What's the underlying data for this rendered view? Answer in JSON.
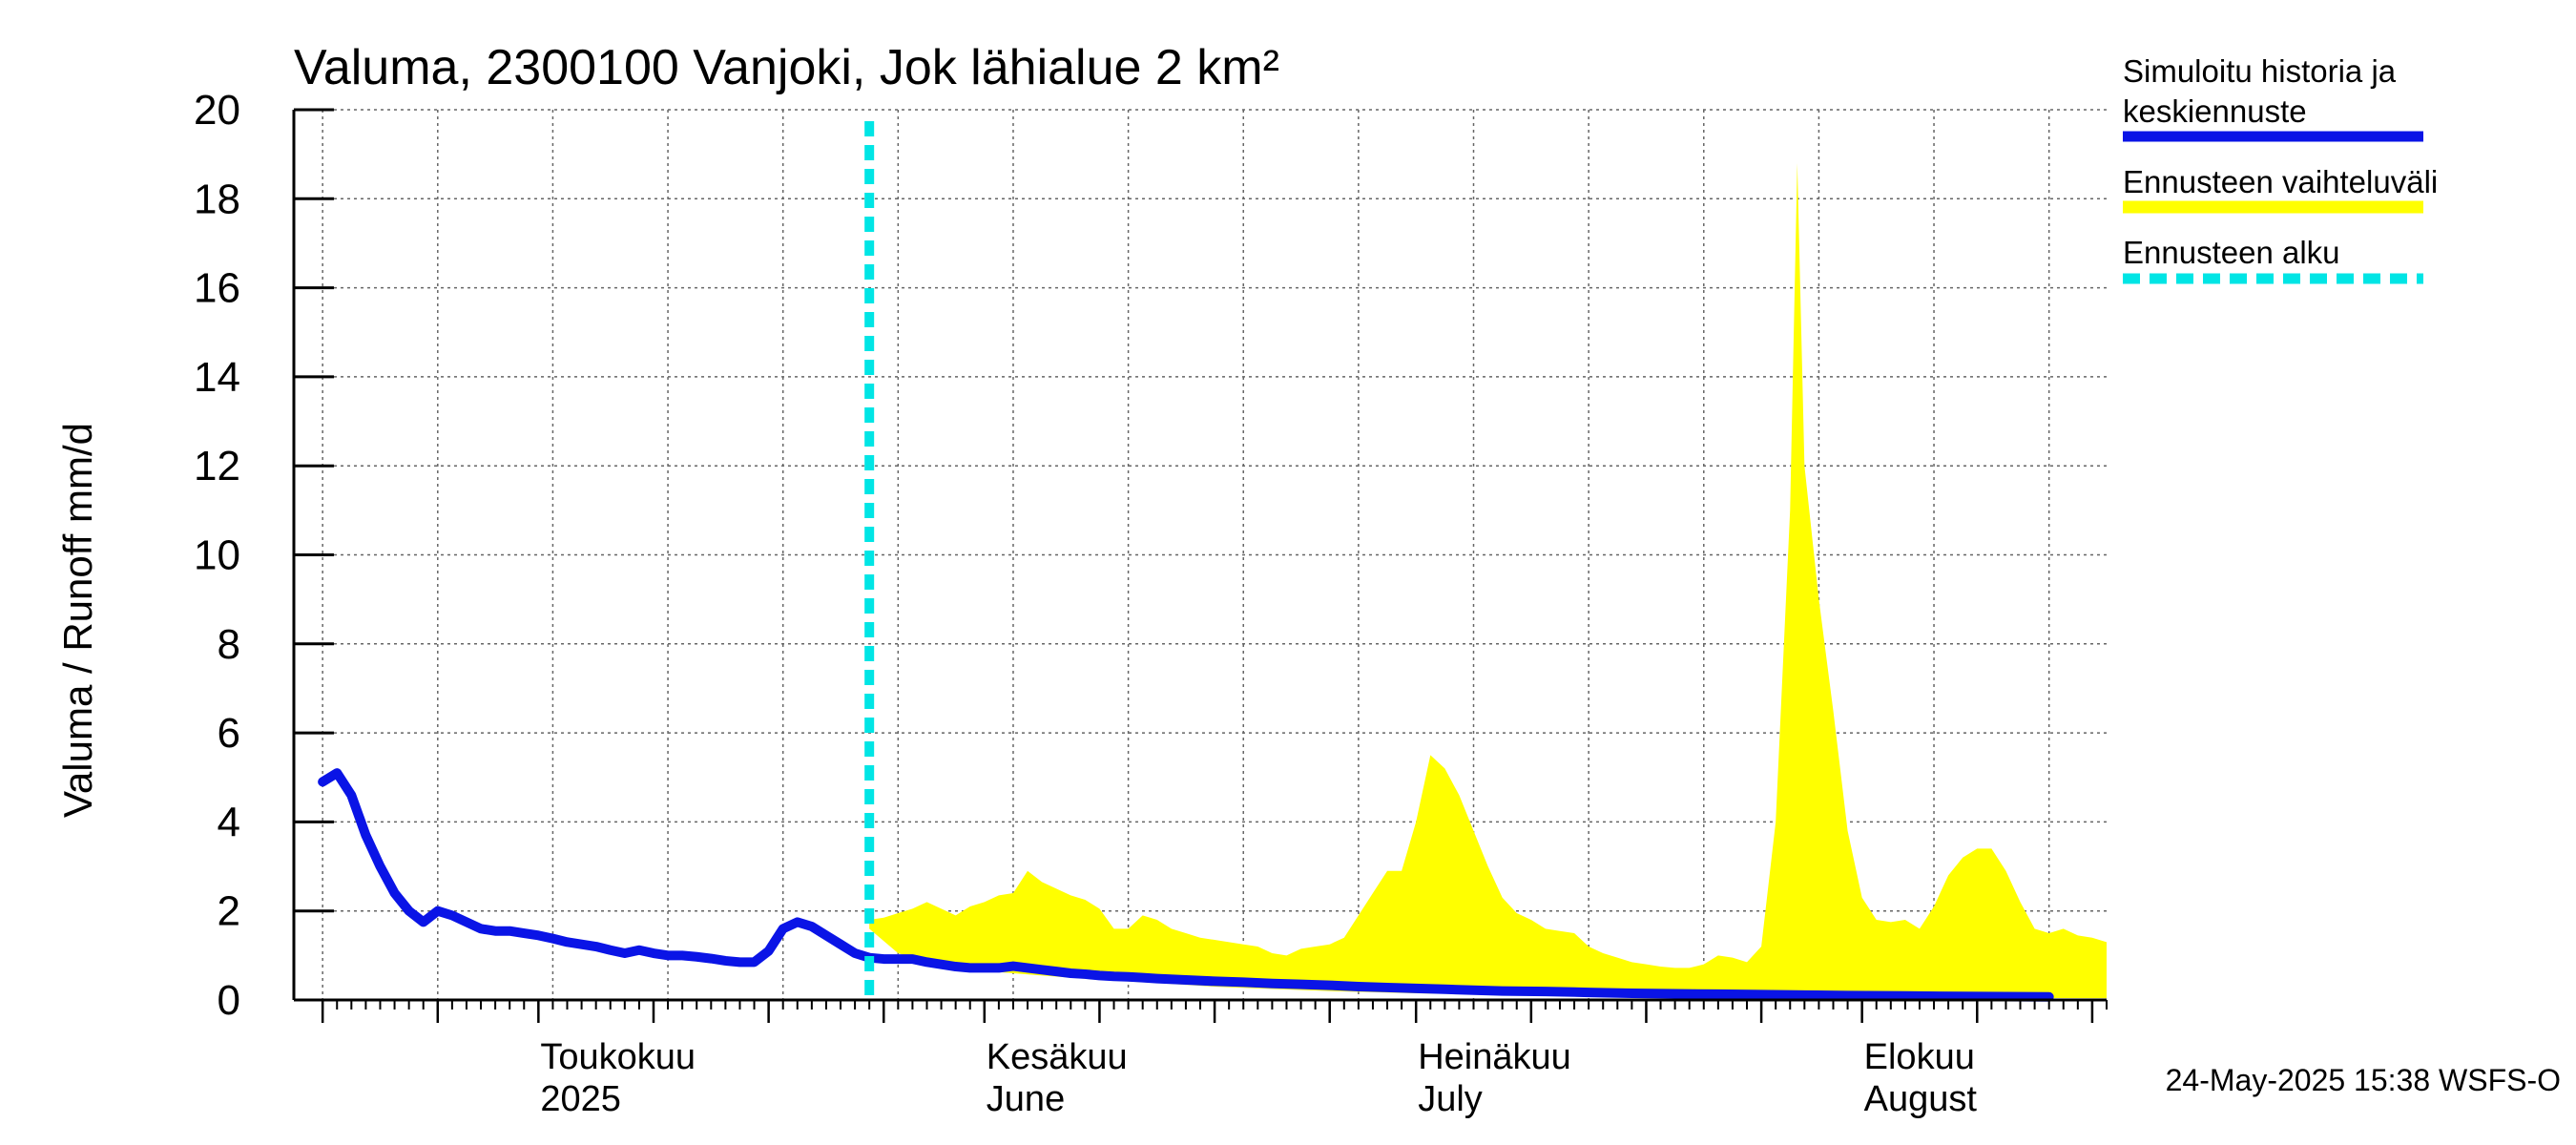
{
  "chart_data": {
    "type": "area",
    "title": "Valuma, 2300100 Vanjoki, Jok lähialue 2 km²",
    "ylabel": "Valuma / Runoff    mm/d",
    "ylim": [
      0,
      20
    ],
    "yticks": [
      0,
      2,
      4,
      6,
      8,
      10,
      12,
      14,
      16,
      18,
      20
    ],
    "x_range_days": [
      0,
      120
    ],
    "x_start_date": "2025-04-16",
    "forecast_start_day": 38,
    "month_labels": [
      {
        "day": 15,
        "line1": "Toukokuu",
        "line2": "2025"
      },
      {
        "day": 46,
        "line1": "Kesäkuu",
        "line2": "June"
      },
      {
        "day": 76,
        "line1": "Heinäkuu",
        "line2": "July"
      },
      {
        "day": 107,
        "line1": "Elokuu",
        "line2": "August"
      }
    ],
    "legend": {
      "sim_line1": "Simuloitu historia ja",
      "sim_line2": "keskiennuste",
      "range": "Ennusteen vaihteluväli",
      "start": "Ennusteen alku"
    },
    "colors": {
      "sim": "#0a14e6",
      "range": "#ffff00",
      "start": "#00e5e5",
      "grid": "#555555"
    },
    "timestamp": "24-May-2025 15:38 WSFS-O",
    "series": [
      {
        "name": "Simuloitu historia ja keskiennuste",
        "points": [
          [
            0,
            4.9
          ],
          [
            1,
            5.1
          ],
          [
            2,
            4.6
          ],
          [
            3,
            3.7
          ],
          [
            4,
            3.0
          ],
          [
            5,
            2.4
          ],
          [
            6,
            2.0
          ],
          [
            7,
            1.75
          ],
          [
            8,
            2.0
          ],
          [
            9,
            1.9
          ],
          [
            10,
            1.75
          ],
          [
            11,
            1.6
          ],
          [
            12,
            1.55
          ],
          [
            13,
            1.55
          ],
          [
            14,
            1.5
          ],
          [
            15,
            1.45
          ],
          [
            16,
            1.38
          ],
          [
            17,
            1.3
          ],
          [
            18,
            1.25
          ],
          [
            19,
            1.2
          ],
          [
            20,
            1.12
          ],
          [
            21,
            1.05
          ],
          [
            22,
            1.12
          ],
          [
            23,
            1.05
          ],
          [
            24,
            1.0
          ],
          [
            25,
            1.0
          ],
          [
            26,
            0.97
          ],
          [
            27,
            0.93
          ],
          [
            28,
            0.88
          ],
          [
            29,
            0.85
          ],
          [
            30,
            0.85
          ],
          [
            31,
            1.1
          ],
          [
            32,
            1.6
          ],
          [
            33,
            1.75
          ],
          [
            34,
            1.65
          ],
          [
            35,
            1.45
          ],
          [
            36,
            1.25
          ],
          [
            37,
            1.05
          ],
          [
            38,
            0.95
          ],
          [
            39,
            0.92
          ],
          [
            40,
            0.92
          ],
          [
            41,
            0.92
          ],
          [
            42,
            0.85
          ],
          [
            43,
            0.8
          ],
          [
            44,
            0.75
          ],
          [
            45,
            0.72
          ],
          [
            46,
            0.72
          ],
          [
            47,
            0.72
          ],
          [
            48,
            0.76
          ],
          [
            49,
            0.72
          ],
          [
            50,
            0.68
          ],
          [
            51,
            0.64
          ],
          [
            52,
            0.6
          ],
          [
            53,
            0.58
          ],
          [
            54,
            0.55
          ],
          [
            55,
            0.53
          ],
          [
            56,
            0.52
          ],
          [
            57,
            0.5
          ],
          [
            58,
            0.48
          ],
          [
            60,
            0.45
          ],
          [
            62,
            0.42
          ],
          [
            64,
            0.4
          ],
          [
            66,
            0.37
          ],
          [
            68,
            0.35
          ],
          [
            70,
            0.33
          ],
          [
            72,
            0.3
          ],
          [
            74,
            0.28
          ],
          [
            76,
            0.26
          ],
          [
            78,
            0.24
          ],
          [
            80,
            0.22
          ],
          [
            82,
            0.2
          ],
          [
            85,
            0.19
          ],
          [
            88,
            0.17
          ],
          [
            91,
            0.15
          ],
          [
            94,
            0.14
          ],
          [
            97,
            0.13
          ],
          [
            100,
            0.12
          ],
          [
            103,
            0.11
          ],
          [
            106,
            0.1
          ],
          [
            110,
            0.09
          ],
          [
            114,
            0.08
          ],
          [
            120,
            0.07
          ]
        ]
      },
      {
        "name": "Ennusteen vaihteluväli (max)",
        "points": [
          [
            38,
            1.8
          ],
          [
            39,
            1.85
          ],
          [
            40,
            1.95
          ],
          [
            41,
            2.05
          ],
          [
            42,
            2.2
          ],
          [
            43,
            2.05
          ],
          [
            44,
            1.9
          ],
          [
            45,
            2.1
          ],
          [
            46,
            2.2
          ],
          [
            47,
            2.35
          ],
          [
            48,
            2.4
          ],
          [
            49,
            2.9
          ],
          [
            50,
            2.65
          ],
          [
            51,
            2.5
          ],
          [
            52,
            2.35
          ],
          [
            53,
            2.25
          ],
          [
            54,
            2.05
          ],
          [
            55,
            1.6
          ],
          [
            56,
            1.6
          ],
          [
            57,
            1.9
          ],
          [
            58,
            1.8
          ],
          [
            59,
            1.6
          ],
          [
            60,
            1.5
          ],
          [
            61,
            1.4
          ],
          [
            62,
            1.35
          ],
          [
            63,
            1.3
          ],
          [
            64,
            1.25
          ],
          [
            65,
            1.2
          ],
          [
            66,
            1.05
          ],
          [
            67,
            1.0
          ],
          [
            68,
            1.15
          ],
          [
            69,
            1.2
          ],
          [
            70,
            1.25
          ],
          [
            71,
            1.4
          ],
          [
            72,
            1.9
          ],
          [
            73,
            2.4
          ],
          [
            74,
            2.9
          ],
          [
            75,
            2.9
          ],
          [
            76,
            4.0
          ],
          [
            77,
            5.5
          ],
          [
            78,
            5.2
          ],
          [
            79,
            4.6
          ],
          [
            80,
            3.8
          ],
          [
            81,
            3.0
          ],
          [
            82,
            2.3
          ],
          [
            83,
            1.95
          ],
          [
            84,
            1.8
          ],
          [
            85,
            1.6
          ],
          [
            86,
            1.55
          ],
          [
            87,
            1.5
          ],
          [
            88,
            1.2
          ],
          [
            89,
            1.05
          ],
          [
            90,
            0.95
          ],
          [
            91,
            0.85
          ],
          [
            92,
            0.8
          ],
          [
            93,
            0.75
          ],
          [
            94,
            0.72
          ],
          [
            95,
            0.72
          ],
          [
            96,
            0.8
          ],
          [
            97,
            1.0
          ],
          [
            98,
            0.95
          ],
          [
            99,
            0.85
          ],
          [
            100,
            1.2
          ],
          [
            101,
            4.0
          ],
          [
            102,
            11.0
          ],
          [
            102.5,
            18.8
          ],
          [
            103,
            12.0
          ],
          [
            104,
            9.0
          ],
          [
            105,
            6.5
          ],
          [
            106,
            3.8
          ],
          [
            107,
            2.3
          ],
          [
            108,
            1.8
          ],
          [
            109,
            1.75
          ],
          [
            110,
            1.8
          ],
          [
            111,
            1.6
          ],
          [
            112,
            2.1
          ],
          [
            113,
            2.8
          ],
          [
            114,
            3.2
          ],
          [
            115,
            3.4
          ],
          [
            116,
            3.4
          ],
          [
            117,
            2.9
          ],
          [
            118,
            2.2
          ],
          [
            119,
            1.6
          ],
          [
            120,
            1.5
          ],
          [
            121,
            1.6
          ],
          [
            122,
            1.45
          ],
          [
            123,
            1.4
          ],
          [
            124,
            1.3
          ]
        ]
      },
      {
        "name": "Ennusteen vaihteluväli (min)",
        "points": [
          [
            38,
            1.6
          ],
          [
            40,
            1.05
          ],
          [
            42,
            0.85
          ],
          [
            44,
            0.75
          ],
          [
            46,
            0.65
          ],
          [
            48,
            0.6
          ],
          [
            50,
            0.55
          ],
          [
            54,
            0.45
          ],
          [
            58,
            0.38
          ],
          [
            62,
            0.3
          ],
          [
            66,
            0.25
          ],
          [
            70,
            0.2
          ],
          [
            76,
            0.15
          ],
          [
            82,
            0.12
          ],
          [
            90,
            0.08
          ],
          [
            100,
            0.06
          ],
          [
            110,
            0.05
          ],
          [
            124,
            0.04
          ]
        ]
      }
    ]
  }
}
